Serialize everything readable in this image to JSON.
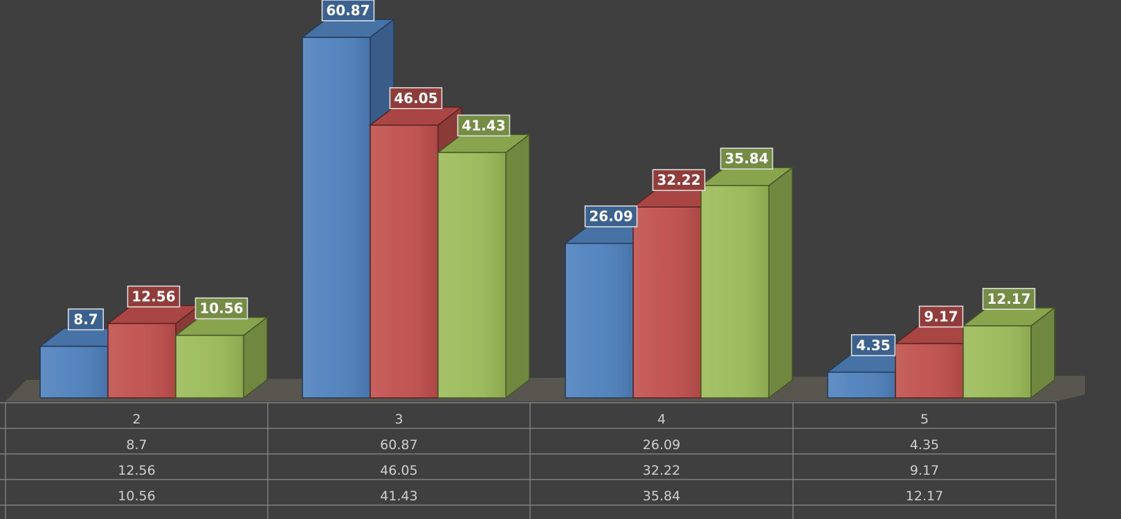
{
  "chart_data": {
    "type": "bar",
    "title": "",
    "xlabel": "",
    "ylabel": "",
    "categories": [
      "2",
      "3",
      "4",
      "5"
    ],
    "series": [
      {
        "values": [
          8.7,
          60.87,
          26.09,
          4.35
        ],
        "color": "#4f81bd"
      },
      {
        "values": [
          12.56,
          46.05,
          32.22,
          9.17
        ],
        "color": "#c0504d"
      },
      {
        "values": [
          10.56,
          41.43,
          35.84,
          12.17
        ],
        "color": "#9bbb59"
      }
    ],
    "ylim": [
      0,
      70
    ],
    "grid": false,
    "legend": "none",
    "data_labels": true,
    "data_table": true,
    "style": "3d-clustered-column",
    "background": "#3f3f3f"
  }
}
